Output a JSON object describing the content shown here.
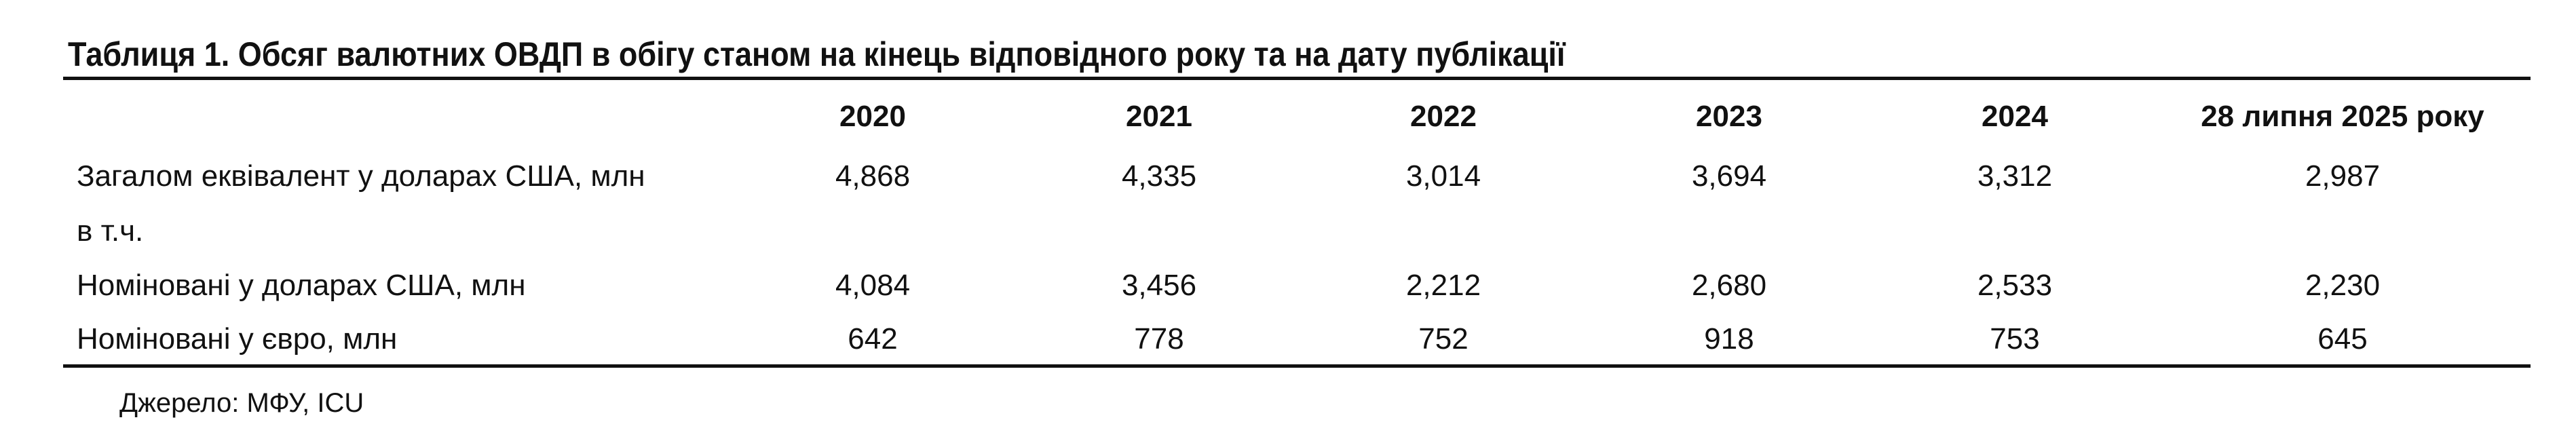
{
  "title": "Таблиця 1. Обсяг валютних ОВДП в обігу станом на кінець відповідного року та на дату публікації",
  "table": {
    "header": [
      "2020",
      "2021",
      "2022",
      "2023",
      "2024",
      "28 липня 2025 року"
    ],
    "rows": [
      {
        "label": "Загалом еквівалент у доларах США, млн",
        "cells": [
          "4,868",
          "4,335",
          "3,014",
          "3,694",
          "3,312",
          "2,987"
        ]
      },
      {
        "label": "в т.ч."
      },
      {
        "label": "Номіновані у доларах США, млн",
        "cells": [
          "4,084",
          "3,456",
          "2,212",
          "2,680",
          "2,533",
          "2,230"
        ]
      },
      {
        "label": "Номіновані у євро, млн",
        "cells": [
          "642",
          "778",
          "752",
          "918",
          "753",
          "645"
        ]
      }
    ]
  },
  "source": "Джерело: МФУ, ICU"
}
